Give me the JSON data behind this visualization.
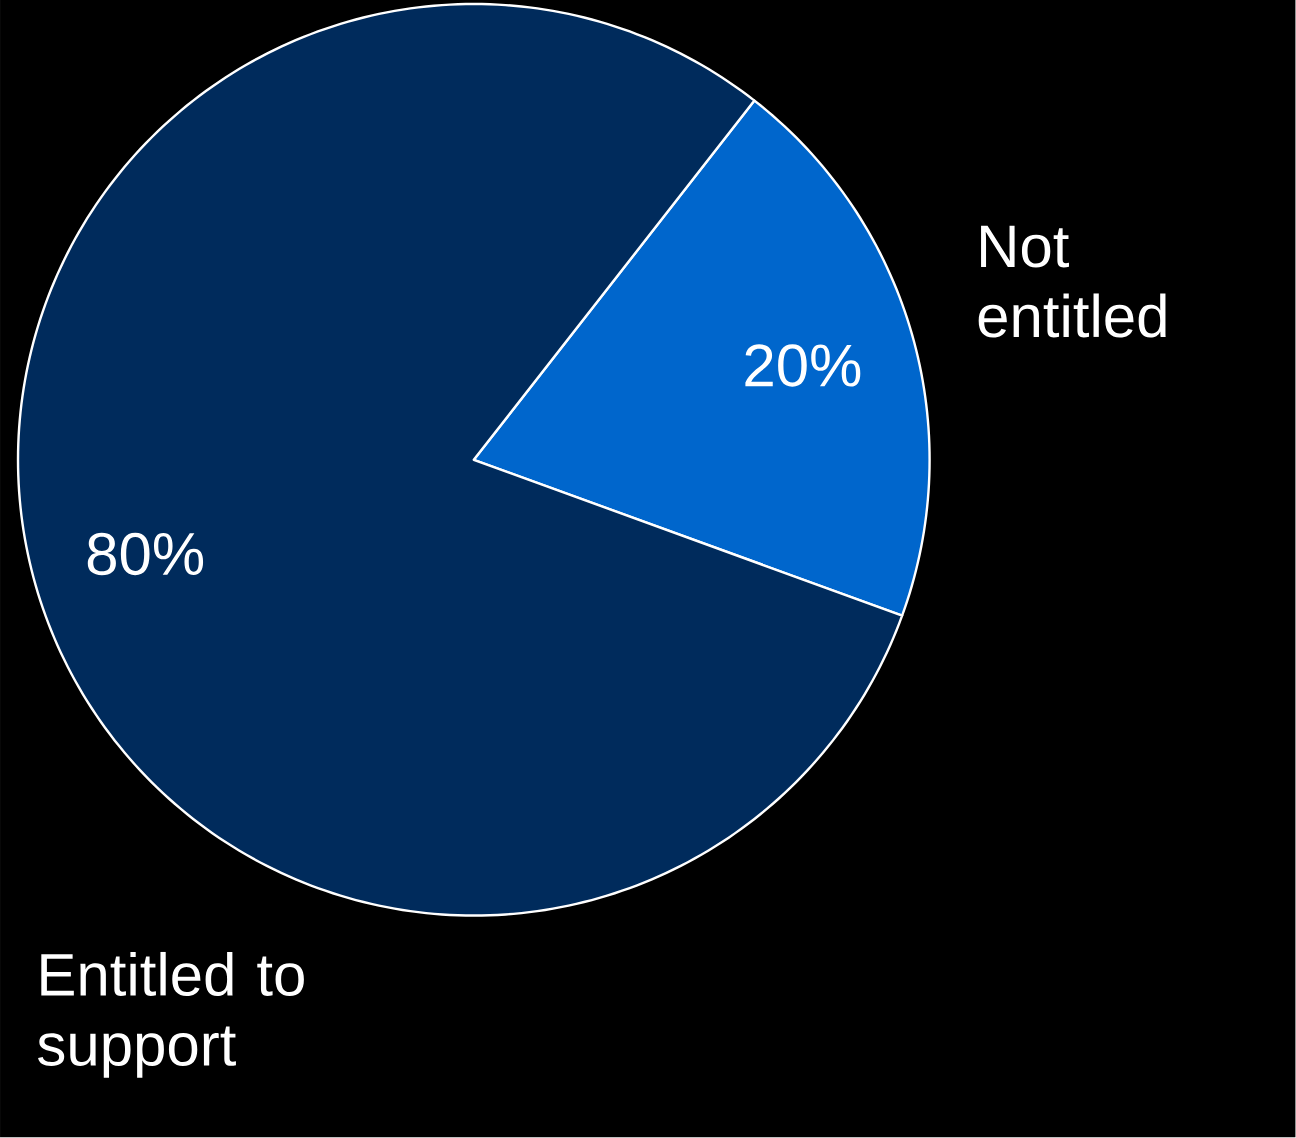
{
  "chart_data": {
    "type": "pie",
    "categories": [
      "Not entitled",
      "Entitled to support"
    ],
    "values": [
      20,
      80
    ],
    "colors": [
      "#0066cc",
      "#002b5c"
    ],
    "value_labels": [
      "20%",
      "80%"
    ]
  }
}
